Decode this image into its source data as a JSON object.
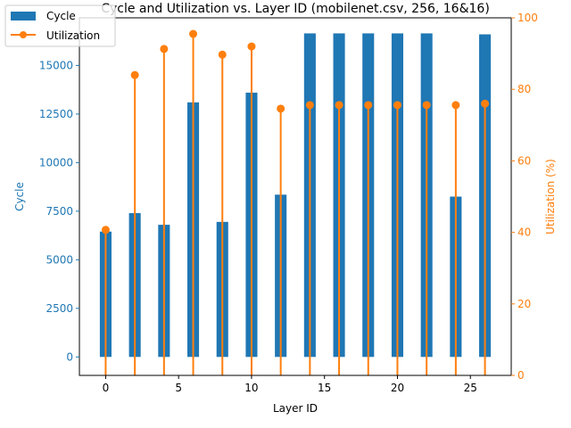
{
  "chart_data": {
    "type": "bar+line",
    "title": "Cycle and Utilization vs. Layer ID (mobilenet.csv, 256, 16&16)",
    "xlabel": "Layer ID",
    "ylabel_left": "Cycle",
    "ylabel_right": "Utilization (%)",
    "x": [
      0,
      2,
      4,
      6,
      8,
      10,
      12,
      14,
      16,
      18,
      20,
      22,
      24,
      26
    ],
    "series": [
      {
        "name": "Cycle",
        "type": "bar",
        "axis": "left",
        "color": "#1f77b4",
        "values": [
          6450,
          7400,
          6800,
          13100,
          6950,
          13600,
          8350,
          16650,
          16650,
          16650,
          16650,
          16650,
          8250,
          16600
        ]
      },
      {
        "name": "Utilization",
        "type": "stem",
        "axis": "right",
        "color": "#ff7f0e",
        "values": [
          40.7,
          84.0,
          91.3,
          95.5,
          89.7,
          92.0,
          74.6,
          75.6,
          75.6,
          75.6,
          75.6,
          75.6,
          75.6,
          76.0
        ]
      }
    ],
    "xlim": [
      -1.8,
      27.8
    ],
    "xticks": [
      0,
      5,
      10,
      15,
      20,
      25
    ],
    "ylim_left": [
      -950,
      17450
    ],
    "yticks_left": [
      0,
      2500,
      5000,
      7500,
      10000,
      12500,
      15000
    ],
    "ylim_right": [
      0,
      100
    ],
    "yticks_right": [
      0,
      20,
      40,
      60,
      80,
      100
    ],
    "legend_position": "top-left",
    "grid": false
  }
}
